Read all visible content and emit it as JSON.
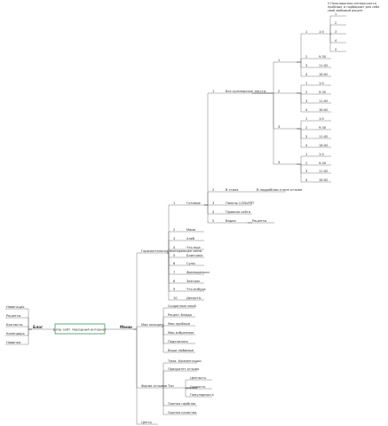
{
  "tree": {
    "label": "Jump сайт. Народный интернет",
    "children": [
      {
        "label": "Блог",
        "children": [
          {
            "label": "Навигация"
          },
          {
            "label": "Рецепты"
          },
          {
            "label": "Контакты"
          },
          {
            "label": "Календарь"
          },
          {
            "label": "Новинки"
          }
        ]
      },
      {
        "label": "Меню",
        "children": [
          {
            "label": "Горизонтальное выпадающее меню",
            "children": [
              {
                "num": "1",
                "label": "Готовые",
                "children": [
                  {
                    "num": "1",
                    "label": "Все кулинарные тексты",
                    "children": [
                      {
                        "label": "1",
                        "children": [
                          {
                            "num": "1",
                            "label": "1:0",
                            "note": "5 Пользователи интересуются пробным, и подбирают для себя свой любимый рецепт",
                            "children": [
                              {
                                "label": "1"
                              },
                              {
                                "label": "2"
                              },
                              {
                                "label": "3"
                              },
                              {
                                "label": "4"
                              },
                              {
                                "label": "5"
                              }
                            ]
                          },
                          {
                            "num": "2",
                            "label": "9:30"
                          },
                          {
                            "num": "3",
                            "label": "11:00"
                          },
                          {
                            "num": "4",
                            "label": "18:00"
                          }
                        ]
                      },
                      {
                        "label": "2",
                        "children": [
                          {
                            "num": "1",
                            "label": "1:0"
                          },
                          {
                            "num": "2",
                            "label": "9:30"
                          },
                          {
                            "num": "3",
                            "label": "11:00"
                          },
                          {
                            "num": "4",
                            "label": "18:00"
                          }
                        ]
                      },
                      {
                        "label": "3",
                        "children": [
                          {
                            "num": "1",
                            "label": "1:0"
                          },
                          {
                            "num": "2",
                            "label": "9:30"
                          },
                          {
                            "num": "3",
                            "label": "11:00"
                          },
                          {
                            "num": "4",
                            "label": "18:00"
                          }
                        ]
                      },
                      {
                        "label": "4",
                        "children": [
                          {
                            "num": "1",
                            "label": "1:0"
                          },
                          {
                            "num": "2",
                            "label": "9:30"
                          },
                          {
                            "num": "3",
                            "label": "11:00"
                          },
                          {
                            "num": "4",
                            "label": "18:00"
                          }
                        ]
                      }
                    ]
                  },
                  {
                    "num": "2",
                    "label": "В стиле",
                    "children": [
                      {
                        "label": "В подробном стиле отзыва"
                      }
                    ]
                  },
                  {
                    "num": "3",
                    "label": "Панель CONVERT"
                  },
                  {
                    "num": "4",
                    "label": "Правила сайта"
                  },
                  {
                    "num": "5",
                    "label": "Видео",
                    "children": [
                      {
                        "label": "Рецепты"
                      }
                    ]
                  }
                ]
              },
              {
                "num": "2",
                "label": "Мама"
              },
              {
                "num": "3",
                "label": "Хлеб"
              },
              {
                "num": "4",
                "label": "Что еще"
              },
              {
                "num": "5",
                "label": "Блинчики"
              },
              {
                "num": "6",
                "label": "Супы"
              },
              {
                "num": "7",
                "label": "Фрикадельки"
              },
              {
                "num": "8",
                "label": "Завтрак"
              },
              {
                "num": "9",
                "label": "Что-нибудь"
              },
              {
                "num": "10",
                "label": "Десерты"
              }
            ]
          },
          {
            "label": "Мои позиции",
            "children": [
              {
                "label": "Созданные мной"
              },
              {
                "label": "Рецепт блюда"
              },
              {
                "label": "Мои пробные"
              },
              {
                "label": "Мои избранные"
              },
              {
                "label": "Поделились"
              },
              {
                "label": "Ваши любимые"
              }
            ]
          },
          {
            "label": "Форма отзывов",
            "children": [
              {
                "label": "Тема. Комментарии"
              },
              {
                "label": "Приоритет отзыва"
              },
              {
                "label": "Тип",
                "children": [
                  {
                    "label": "Ценность"
                  },
                  {
                    "label": "Скорость"
                  },
                  {
                    "label": "Популярность"
                  }
                ]
              },
              {
                "label": "Оценка пробная"
              },
              {
                "label": "Оценка качества"
              }
            ]
          },
          {
            "label": "Центр"
          }
        ]
      }
    ]
  }
}
